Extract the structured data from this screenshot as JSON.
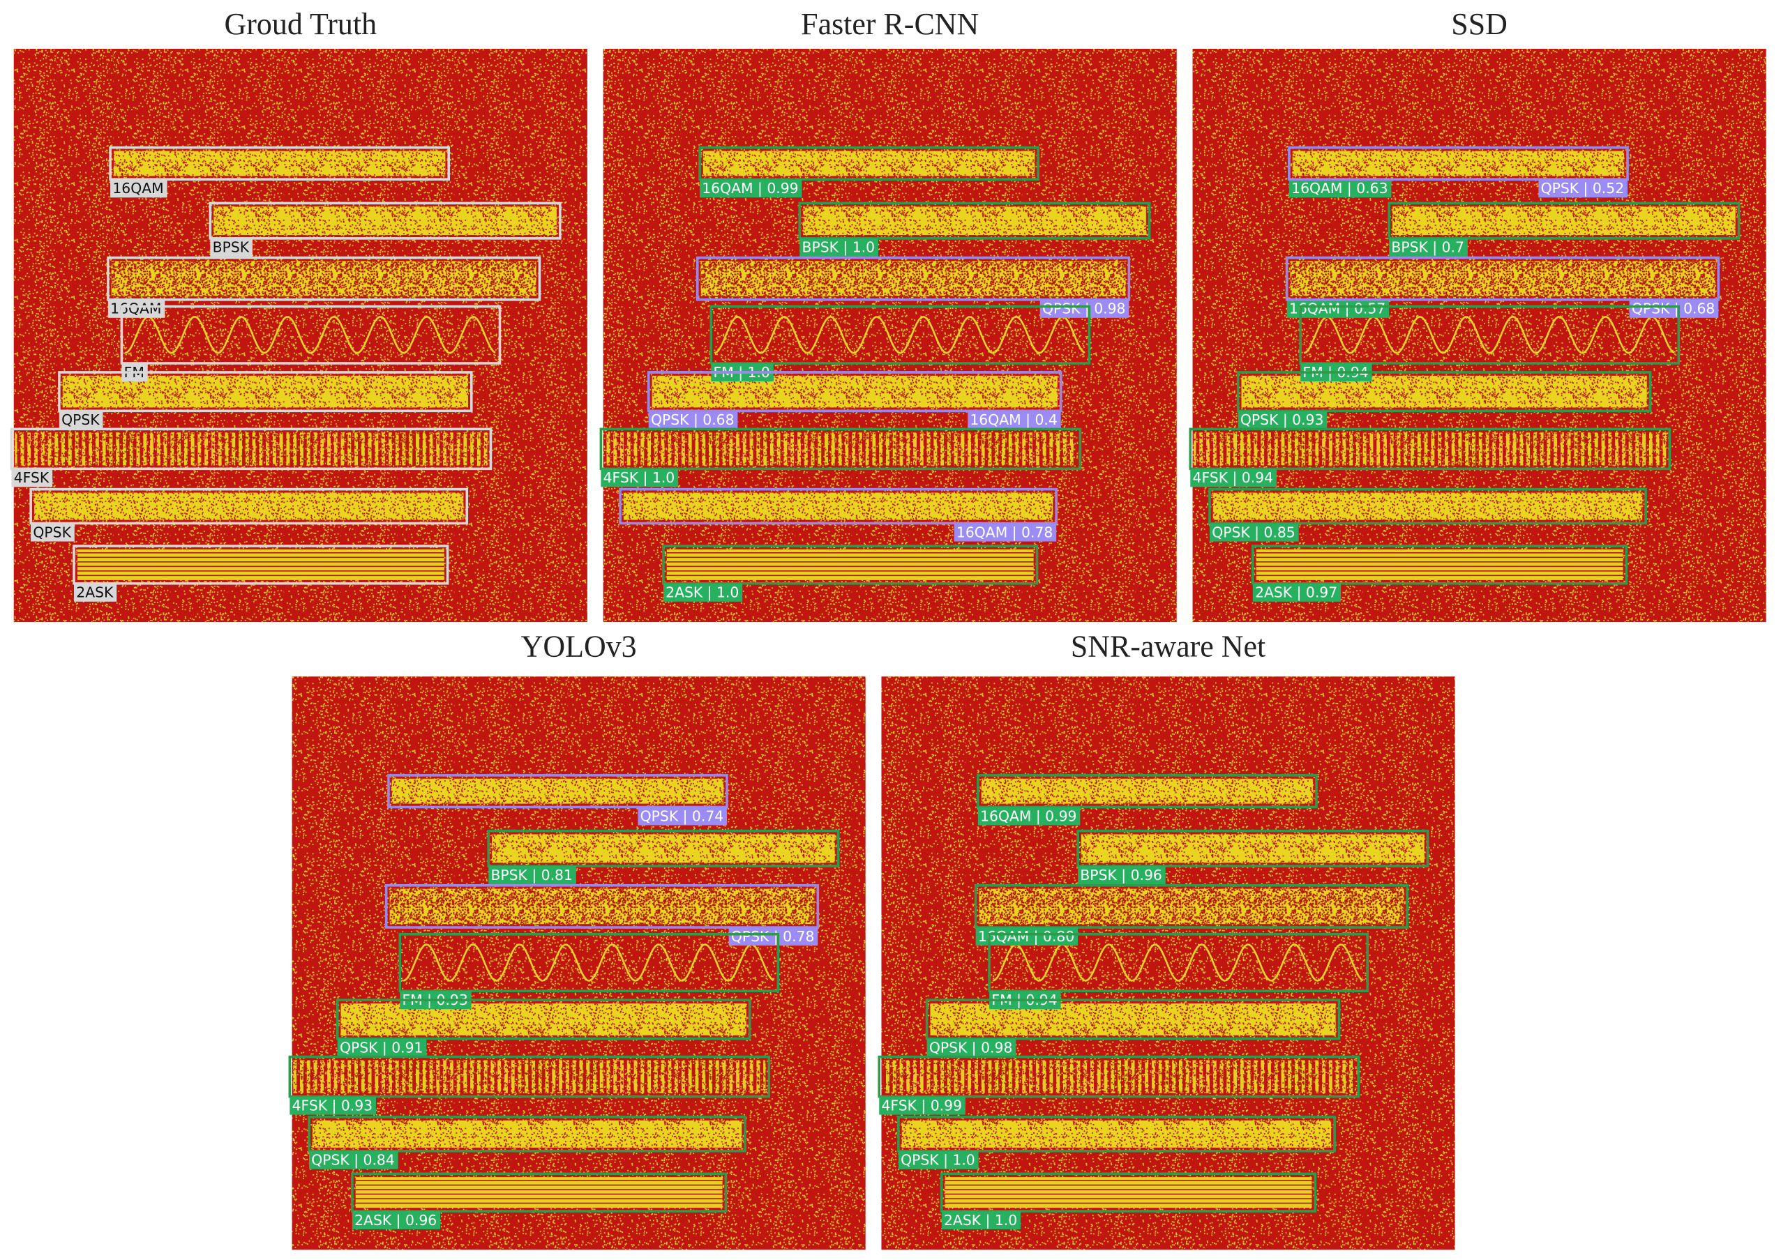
{
  "panels": [
    {
      "title": "Groud Truth",
      "boxes": [
        {
          "label": "16QAM"
        },
        {
          "label": "BPSK"
        },
        {
          "label": "16QAM"
        },
        {
          "label": "FM"
        },
        {
          "label": "QPSK"
        },
        {
          "label": "4FSK"
        },
        {
          "label": "QPSK"
        },
        {
          "label": "2ASK"
        }
      ]
    },
    {
      "title": "Faster R-CNN",
      "boxes": [
        {
          "label": "16QAM | 0.99"
        },
        {
          "label": "BPSK | 1.0"
        },
        {
          "label": "QPSK | 0.98"
        },
        {
          "label": "FM | 1.0"
        },
        {
          "label": "QPSK | 0.68"
        },
        {
          "label": "16QAM | 0.4"
        },
        {
          "label": "4FSK | 1.0"
        },
        {
          "label": "16QAM | 0.78"
        },
        {
          "label": "2ASK | 1.0"
        }
      ]
    },
    {
      "title": "SSD",
      "boxes": [
        {
          "label": "16QAM | 0.63"
        },
        {
          "label": "QPSK | 0.52"
        },
        {
          "label": "BPSK | 0.7"
        },
        {
          "label": "16QAM | 0.57"
        },
        {
          "label": "QPSK | 0.68"
        },
        {
          "label": "FM | 0.94"
        },
        {
          "label": "QPSK | 0.93"
        },
        {
          "label": "4FSK | 0.94"
        },
        {
          "label": "QPSK | 0.85"
        },
        {
          "label": "2ASK | 0.97"
        }
      ]
    },
    {
      "title": "YOLOv3",
      "boxes": [
        {
          "label": "QPSK | 0.74"
        },
        {
          "label": "BPSK | 0.81"
        },
        {
          "label": "QPSK | 0.78"
        },
        {
          "label": "FM | 0.93"
        },
        {
          "label": "QPSK | 0.91"
        },
        {
          "label": "4FSK | 0.93"
        },
        {
          "label": "QPSK | 0.84"
        },
        {
          "label": "2ASK | 0.96"
        }
      ]
    },
    {
      "title": "SNR-aware Net",
      "boxes": [
        {
          "label": "16QAM | 0.99"
        },
        {
          "label": "BPSK | 0.96"
        },
        {
          "label": "16QAM | 0.80"
        },
        {
          "label": "FM | 0.94"
        },
        {
          "label": "QPSK | 0.98"
        },
        {
          "label": "4FSK | 0.99"
        },
        {
          "label": "QPSK | 1.0"
        },
        {
          "label": "2ASK | 1.0"
        }
      ]
    }
  ]
}
